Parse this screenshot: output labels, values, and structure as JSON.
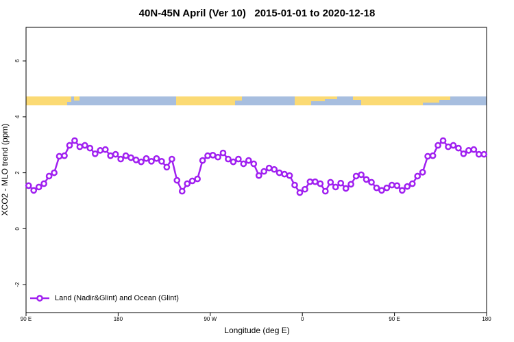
{
  "chart_data": {
    "type": "line",
    "title": "40N-45N April (Ver 10)   2015-01-01 to 2020-12-18",
    "xlabel": "Longitude (deg E)",
    "ylabel": "XCO2 - MLO trend (ppm)",
    "x": [
      92.5,
      97.5,
      102.5,
      107.5,
      112.5,
      117.5,
      122.5,
      127.5,
      132.5,
      137.5,
      142.5,
      147.5,
      152.5,
      157.5,
      162.5,
      167.5,
      172.5,
      177.5,
      182.5,
      187.5,
      192.5,
      197.5,
      202.5,
      207.5,
      212.5,
      217.5,
      222.5,
      227.5,
      232.5,
      237.5,
      242.5,
      247.5,
      252.5,
      257.5,
      262.5,
      267.5,
      272.5,
      277.5,
      282.5,
      287.5,
      292.5,
      297.5,
      302.5,
      307.5,
      312.5,
      317.5,
      322.5,
      327.5,
      332.5,
      337.5,
      342.5,
      347.5,
      352.5,
      357.5,
      362.5,
      367.5,
      372.5,
      377.5,
      382.5,
      387.5,
      392.5,
      397.5,
      402.5,
      407.5,
      412.5,
      417.5,
      422.5,
      427.5,
      432.5,
      437.5,
      442.5,
      447.5,
      452.5,
      457.5,
      462.5,
      467.5,
      472.5,
      477.5,
      482.5,
      487.5,
      492.5,
      497.5,
      502.5,
      507.5,
      512.5,
      517.5,
      522.5,
      527.5,
      532.5,
      537.5
    ],
    "series": [
      {
        "name": "Land (Nadir&Glint) and Ocean (Glint)",
        "color": "#a020f0",
        "values": [
          1.54,
          1.37,
          1.49,
          1.61,
          1.88,
          2.0,
          2.59,
          2.61,
          2.98,
          3.15,
          2.93,
          2.98,
          2.88,
          2.68,
          2.8,
          2.83,
          2.61,
          2.66,
          2.49,
          2.61,
          2.54,
          2.46,
          2.39,
          2.51,
          2.41,
          2.51,
          2.41,
          2.2,
          2.49,
          1.73,
          1.34,
          1.61,
          1.71,
          1.78,
          2.44,
          2.61,
          2.63,
          2.56,
          2.71,
          2.49,
          2.39,
          2.49,
          2.32,
          2.44,
          2.32,
          1.9,
          2.05,
          2.17,
          2.12,
          2.0,
          1.95,
          1.9,
          1.56,
          1.29,
          1.41,
          1.68,
          1.68,
          1.61,
          1.34,
          1.66,
          1.49,
          1.63,
          1.44,
          1.59,
          1.88,
          1.93,
          1.76,
          1.66,
          1.46,
          1.37,
          1.46,
          1.56,
          1.54,
          1.37,
          1.51,
          1.61,
          1.88,
          2.02,
          2.59,
          2.61,
          2.98,
          3.15,
          2.93,
          2.98,
          2.88,
          2.68,
          2.8,
          2.83,
          2.66,
          2.66
        ]
      }
    ],
    "xlim": [
      90,
      540
    ],
    "xticks": [
      {
        "value": 90,
        "label": "90 E"
      },
      180,
      {
        "value": 270,
        "label": "90 W"
      },
      {
        "value": 360,
        "label": "0"
      },
      {
        "value": 450,
        "label": "90 E"
      },
      {
        "value": 540,
        "label": "180"
      }
    ],
    "ylim": [
      -3,
      7.2
    ],
    "yticks": [
      -2,
      0,
      2,
      4,
      6
    ],
    "legend": "bottom-left"
  }
}
